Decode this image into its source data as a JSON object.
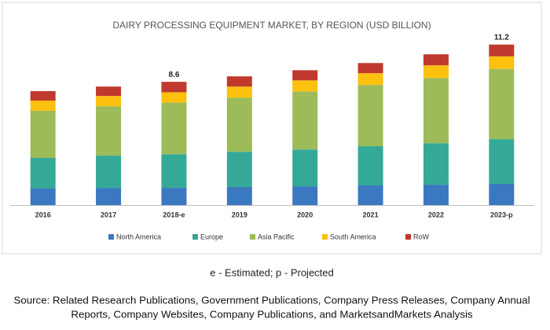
{
  "chart_data": {
    "type": "stacked_bar",
    "title": "DAIRY PROCESSING EQUIPMENT MARKET, BY REGION (USD BILLION)",
    "categories": [
      "2016",
      "2017",
      "2018-e",
      "2019",
      "2020",
      "2021",
      "2022",
      "2023-p"
    ],
    "series": [
      {
        "name": "North America",
        "color": "#3b78c2",
        "values": [
          1.15,
          1.2,
          1.2,
          1.26,
          1.31,
          1.37,
          1.42,
          1.48
        ]
      },
      {
        "name": "Europe",
        "color": "#35a997",
        "values": [
          2.14,
          2.25,
          2.35,
          2.46,
          2.57,
          2.74,
          2.9,
          3.12
        ]
      },
      {
        "name": "Asia Pacific",
        "color": "#9dbb59",
        "values": [
          3.29,
          3.45,
          3.6,
          3.78,
          4.05,
          4.27,
          4.55,
          4.9
        ]
      },
      {
        "name": "South America",
        "color": "#fcc10f",
        "values": [
          0.71,
          0.71,
          0.72,
          0.77,
          0.77,
          0.82,
          0.88,
          0.88
        ]
      },
      {
        "name": "RoW",
        "color": "#c0392e",
        "values": [
          0.66,
          0.66,
          0.73,
          0.71,
          0.71,
          0.71,
          0.77,
          0.82
        ]
      }
    ],
    "totals": [
      null,
      null,
      8.6,
      null,
      null,
      null,
      null,
      11.2
    ],
    "ylim": [
      0,
      12.5
    ],
    "legend": "bottom"
  },
  "footnote": "e - Estimated; p - Projected",
  "source": [
    "Source: Related Research Publications, Government Publications, Company Press Releases, Company Annual",
    "Reports, Company Websites, Company Publications, and MarketsandMarkets Analysis"
  ]
}
